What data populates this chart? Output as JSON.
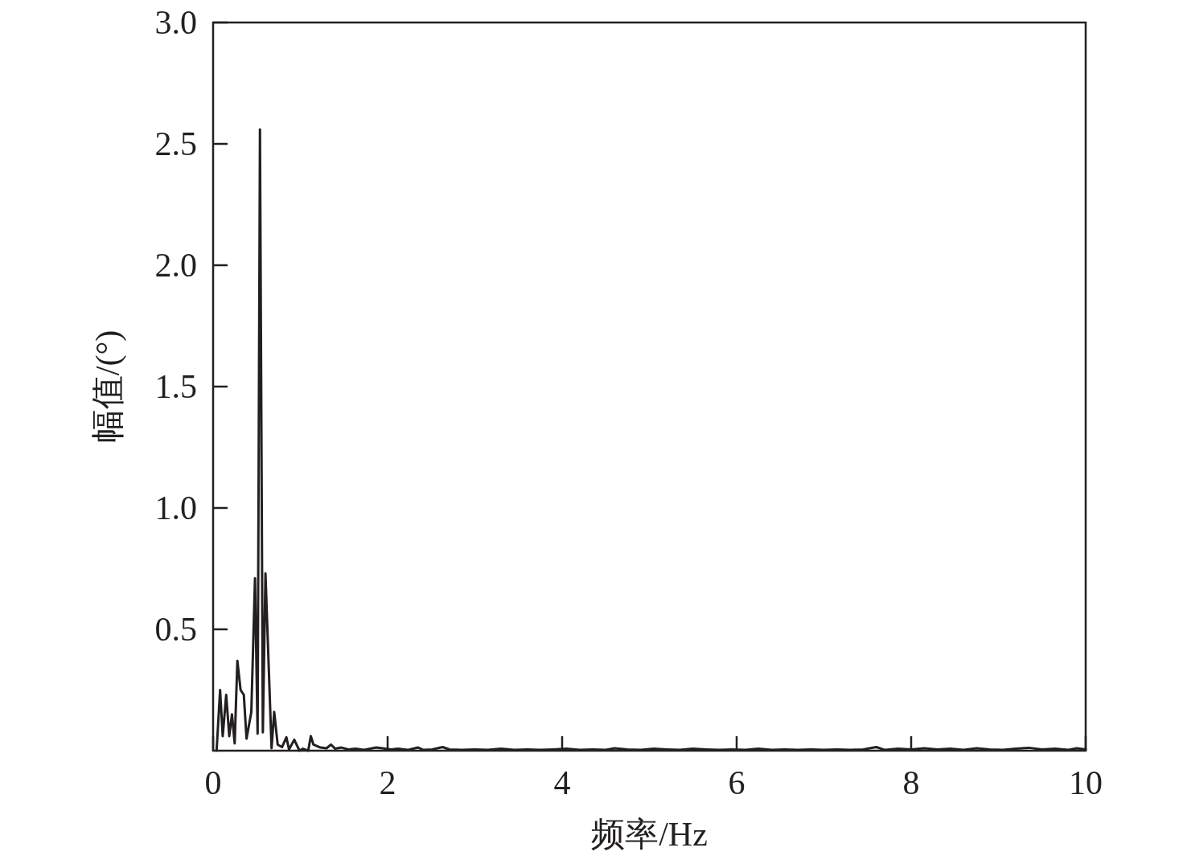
{
  "chart_data": {
    "type": "line",
    "xlabel": "频率/Hz",
    "ylabel": "幅值/(°)",
    "color": "#231f20",
    "xlim": [
      0,
      10
    ],
    "ylim": [
      0,
      3
    ],
    "xticks": [
      0,
      2,
      4,
      6,
      8,
      10
    ],
    "yticks": [
      {
        "value": 0.5,
        "label": "0.5"
      },
      {
        "value": 1,
        "label": "1.0"
      },
      {
        "value": 1.5,
        "label": "1.5"
      },
      {
        "value": 2,
        "label": "2.0"
      },
      {
        "value": 2.5,
        "label": "2.5"
      },
      {
        "value": 3,
        "label": "3.0"
      }
    ],
    "x": [
      0.04,
      0.08,
      0.11,
      0.15,
      0.185,
      0.216,
      0.247,
      0.278,
      0.315,
      0.352,
      0.383,
      0.438,
      0.48,
      0.51,
      0.537,
      0.57,
      0.6,
      0.67,
      0.7,
      0.74,
      0.79,
      0.84,
      0.87,
      0.93,
      0.99,
      1.03,
      1.09,
      1.12,
      1.15,
      1.23,
      1.3,
      1.35,
      1.4,
      1.47,
      1.55,
      1.63,
      1.73,
      1.87,
      2.04,
      2.12,
      2.23,
      2.35,
      2.41,
      2.51,
      2.63,
      2.71,
      2.85,
      3.0,
      3.15,
      3.3,
      3.45,
      3.6,
      3.75,
      3.9,
      4.05,
      4.2,
      4.35,
      4.5,
      4.6,
      4.75,
      4.9,
      5.05,
      5.2,
      5.35,
      5.5,
      5.65,
      5.8,
      5.95,
      6.1,
      6.25,
      6.4,
      6.55,
      6.7,
      6.85,
      7.0,
      7.15,
      7.3,
      7.45,
      7.6,
      7.7,
      7.85,
      8.0,
      8.15,
      8.3,
      8.45,
      8.6,
      8.75,
      8.9,
      9.05,
      9.2,
      9.35,
      9.5,
      9.65,
      9.8,
      9.9,
      10.0
    ],
    "values": [
      0,
      0.25,
      0.06,
      0.23,
      0.06,
      0.15,
      0.03,
      0.37,
      0.25,
      0.23,
      0.05,
      0.16,
      0.71,
      0.07,
      2.56,
      0.075,
      0.73,
      0.01,
      0.16,
      0.025,
      0.015,
      0.055,
      0.005,
      0.045,
      0,
      0.008,
      0,
      0.06,
      0.025,
      0.013,
      0.01,
      0.025,
      0.008,
      0.013,
      0.005,
      0.008,
      0.003,
      0.013,
      0.005,
      0.008,
      0.003,
      0.013,
      0.003,
      0.005,
      0.015,
      0.005,
      0.003,
      0.005,
      0.003,
      0.008,
      0.003,
      0.005,
      0.003,
      0.005,
      0.008,
      0.003,
      0.005,
      0.003,
      0.01,
      0.005,
      0.003,
      0.008,
      0.005,
      0.003,
      0.008,
      0.005,
      0.003,
      0.005,
      0.003,
      0.008,
      0.003,
      0.005,
      0.003,
      0.005,
      0.003,
      0.005,
      0.003,
      0.005,
      0.015,
      0.003,
      0.008,
      0.005,
      0.01,
      0.005,
      0.008,
      0.003,
      0.01,
      0.005,
      0.003,
      0.008,
      0.012,
      0.005,
      0.008,
      0.003,
      0.01,
      0.005
    ]
  }
}
